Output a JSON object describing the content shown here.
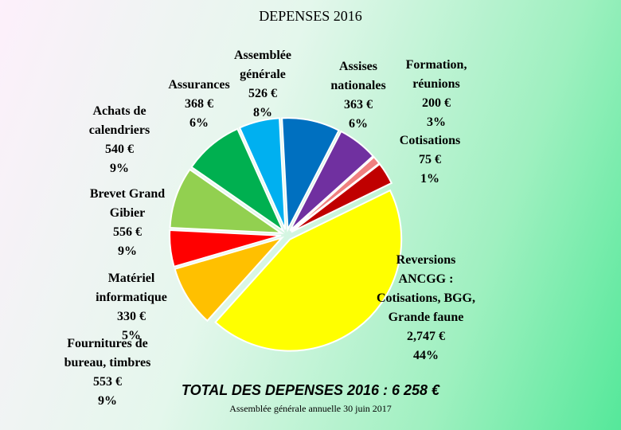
{
  "chart_data": {
    "type": "pie",
    "title": "DEPENSES 2016",
    "categories": [
      "Assemblée générale",
      "Assises nationales",
      "Cotisations",
      "Formation, réunions",
      "Reversions ANCGG : Cotisations, BGG, Grande faune",
      "Fournitures de bureau, timbres",
      "Matériel informatique",
      "Brevet Grand Gibier",
      "Achats de calendriers",
      "Assurances"
    ],
    "values": [
      526,
      363,
      75,
      200,
      2747,
      553,
      330,
      556,
      540,
      368
    ],
    "value_labels": [
      "526 €",
      "363 €",
      "75 €",
      "200 €",
      "2,747 €",
      "553 €",
      "330 €",
      "556 €",
      "540 €",
      "368 €"
    ],
    "percent_labels": [
      "8%",
      "6%",
      "1%",
      "3%",
      "44%",
      "9%",
      "5%",
      "9%",
      "9%",
      "6%"
    ],
    "colors": [
      "#0070c0",
      "#7030a0",
      "#f08080",
      "#c00000",
      "#ffff00",
      "#ffc000",
      "#ff0000",
      "#92d050",
      "#00b050",
      "#00b0f0"
    ],
    "total_text": "TOTAL DES DEPENSES 2016 : 6 258 €",
    "footer": "Assemblée générale annuelle 30 juin 2017"
  }
}
